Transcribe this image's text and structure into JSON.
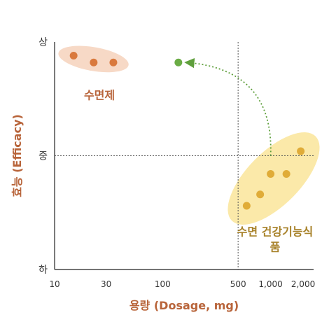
{
  "colors": {
    "axis_label": "#b8643a",
    "axis": "#222222",
    "crosshair": "#555555",
    "sleep_fill": "#f7d9c6",
    "sleep_dot": "#d9793d",
    "sleep_text": "#b8643a",
    "health_fill": "#fbe9a9",
    "health_dot": "#e0ac38",
    "health_text": "#a8822a",
    "target_dot": "#6aac45",
    "arrow": "#5f9f3c"
  },
  "chart_data": {
    "type": "scatter",
    "x_scale": "log",
    "xlim": [
      10,
      2500
    ],
    "ylim": [
      0,
      10
    ],
    "xlabel": "용량 (Dosage, mg)",
    "ylabel": "효능 (Efficacy)",
    "x_ticks": [
      {
        "value": 10,
        "label": "10"
      },
      {
        "value": 30,
        "label": "30"
      },
      {
        "value": 100,
        "label": "100"
      },
      {
        "value": 500,
        "label": "500"
      },
      {
        "value": 1000,
        "label": "1,000"
      },
      {
        "value": 2000,
        "label": "2,000"
      }
    ],
    "y_ticks": [
      {
        "value": 10,
        "label": "상"
      },
      {
        "value": 5,
        "label": "중"
      },
      {
        "value": 0,
        "label": "하"
      }
    ],
    "crosshair": {
      "x": 500,
      "y": 5
    },
    "groups": [
      {
        "name": "수면제",
        "label_lines": [
          "수면제"
        ],
        "label_at": [
          26,
          7.5
        ],
        "color_key": "sleep",
        "points": [
          {
            "x": 15,
            "y": 9.4
          },
          {
            "x": 23,
            "y": 9.1
          },
          {
            "x": 35,
            "y": 9.1
          }
        ]
      },
      {
        "name": "수면 건강기능식품",
        "label_lines": [
          "수면 건강기능식",
          "품"
        ],
        "label_at": [
          1100,
          1.5
        ],
        "color_key": "health",
        "points": [
          {
            "x": 600,
            "y": 2.8
          },
          {
            "x": 800,
            "y": 3.3
          },
          {
            "x": 1000,
            "y": 4.2
          },
          {
            "x": 1400,
            "y": 4.2
          },
          {
            "x": 1900,
            "y": 5.2
          }
        ]
      }
    ],
    "target_point": {
      "x": 140,
      "y": 9.1
    },
    "arrow": {
      "from": [
        1000,
        5.0
      ],
      "to": [
        140,
        9.1
      ]
    }
  }
}
